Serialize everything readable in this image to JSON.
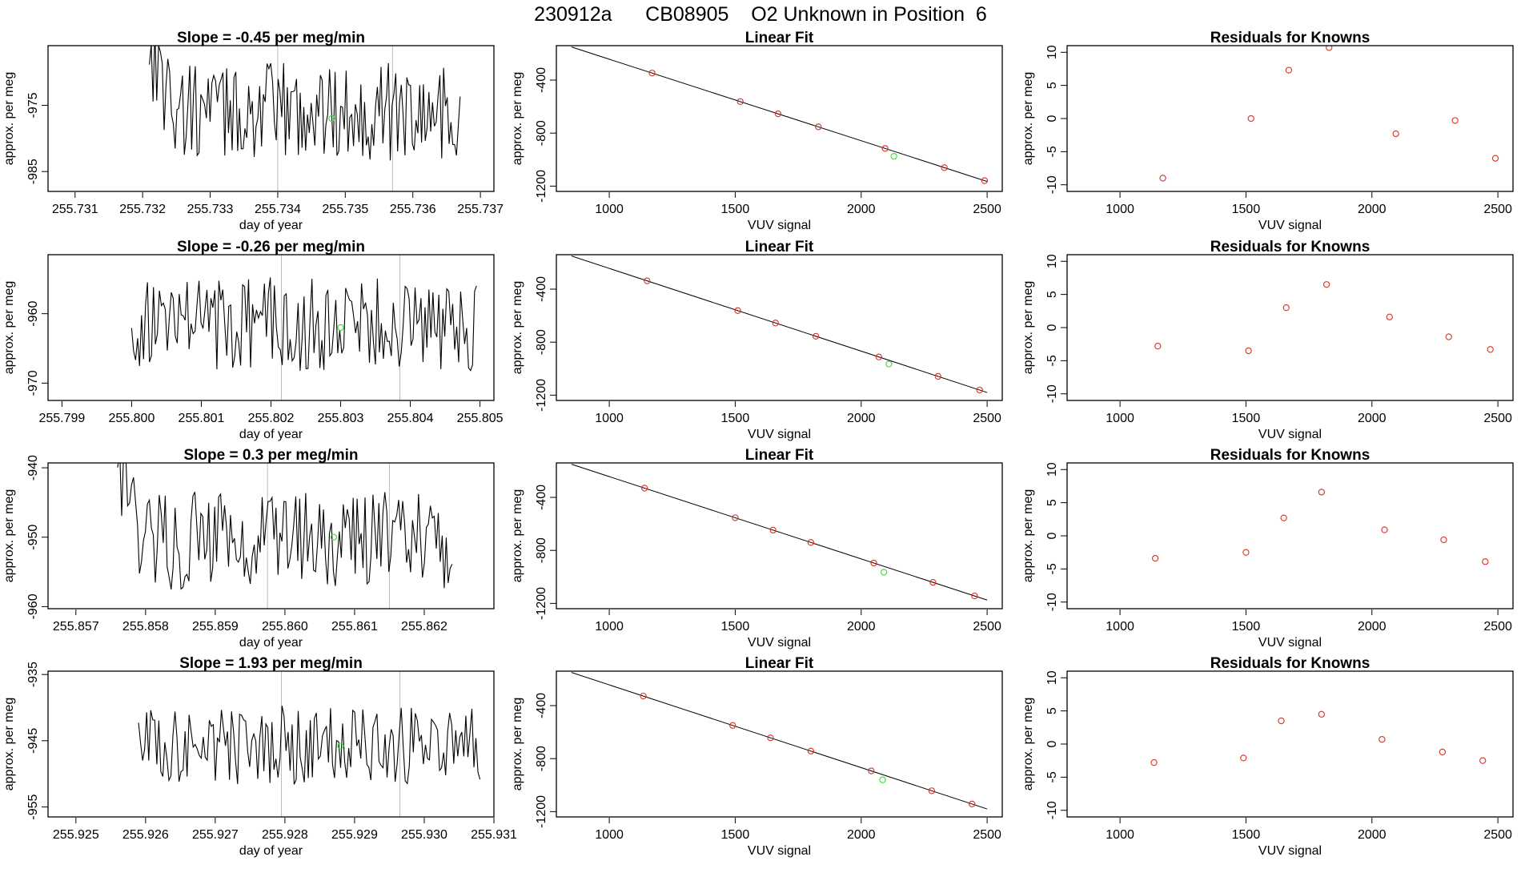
{
  "figure": {
    "suptitle": "230912a      CB08905    O2 Unknown in Position  6"
  },
  "chart_data": [
    {
      "type": "line",
      "row": 1,
      "title": "Slope =  -0.45  per meg/min",
      "xlabel": "day of year",
      "ylabel": "approx. per meg",
      "xlim": [
        255.7306,
        255.7372
      ],
      "ylim": [
        -988,
        -966
      ],
      "xticks": [
        255.731,
        255.732,
        255.733,
        255.734,
        255.735,
        255.736,
        255.737
      ],
      "xtick_labels": [
        "255.731",
        "255.732",
        "255.733",
        "255.734",
        "255.735",
        "255.736",
        "255.737"
      ],
      "yticks": [
        -975,
        -985
      ],
      "ytick_labels": [
        "-975",
        "-985"
      ],
      "vlines": [
        255.734,
        255.7357
      ],
      "series_start": 255.7321,
      "series_end": 255.7367,
      "series_n": 170,
      "series_center": -976,
      "series_amp": 4.6,
      "series_lead": 10,
      "unknown_point": {
        "x": 255.7348,
        "y": -977
      }
    },
    {
      "type": "scatter",
      "row": 1,
      "title": "Linear Fit",
      "xlabel": "VUV signal",
      "ylabel": "approx. per meg",
      "xlim": [
        790,
        2560
      ],
      "ylim": [
        -1240,
        -140
      ],
      "xticks": [
        1000,
        1500,
        2000,
        2500
      ],
      "xtick_labels": [
        "1000",
        "1500",
        "2000",
        "2500"
      ],
      "yticks": [
        -400,
        -800,
        -1200
      ],
      "ytick_labels": [
        "-400",
        "-800",
        "-1200"
      ],
      "fit_line": {
        "x1": 850,
        "y1": -150,
        "x2": 2500,
        "y2": -1165
      },
      "known_x": [
        1170,
        1520,
        1670,
        1830,
        2095,
        2330,
        2490
      ],
      "unknown": {
        "x": 2130,
        "y": -975
      }
    },
    {
      "type": "scatter",
      "row": 1,
      "title": "Residuals for Knowns",
      "xlabel": "VUV signal",
      "ylabel": "approx. per meg",
      "xlim": [
        790,
        2560
      ],
      "ylim": [
        -11,
        11
      ],
      "xticks": [
        1000,
        1500,
        2000,
        2500
      ],
      "xtick_labels": [
        "1000",
        "1500",
        "2000",
        "2500"
      ],
      "yticks": [
        10,
        5,
        0,
        -5,
        -10
      ],
      "ytick_labels": [
        "10",
        "5",
        "0",
        "-5",
        "-10"
      ],
      "x": [
        1170,
        1520,
        1670,
        1830,
        2095,
        2330,
        2490
      ],
      "y": [
        -9,
        0,
        7.3,
        10.7,
        -2.3,
        -0.3,
        -6
      ]
    },
    {
      "type": "line",
      "row": 2,
      "title": "Slope =  -0.26  per meg/min",
      "xlabel": "day of year",
      "ylabel": "approx. per meg",
      "xlim": [
        255.7988,
        255.8052
      ],
      "ylim": [
        -972.5,
        -951.5
      ],
      "xticks": [
        255.799,
        255.8,
        255.801,
        255.802,
        255.803,
        255.804,
        255.805
      ],
      "xtick_labels": [
        "255.799",
        "255.800",
        "255.801",
        "255.802",
        "255.803",
        "255.804",
        "255.805"
      ],
      "yticks": [
        -960,
        -970
      ],
      "ytick_labels": [
        "-960",
        "-970"
      ],
      "vlines": [
        255.80215,
        255.80385
      ],
      "series_start": 255.8,
      "series_end": 255.80495,
      "series_n": 175,
      "series_center": -961.5,
      "series_amp": 4.2,
      "series_lead": 0,
      "unknown_point": {
        "x": 255.803,
        "y": -962
      }
    },
    {
      "type": "scatter",
      "row": 2,
      "title": "Linear Fit",
      "xlabel": "VUV signal",
      "ylabel": "approx. per meg",
      "xlim": [
        790,
        2560
      ],
      "ylim": [
        -1240,
        -140
      ],
      "xticks": [
        1000,
        1500,
        2000,
        2500
      ],
      "xtick_labels": [
        "1000",
        "1500",
        "2000",
        "2500"
      ],
      "yticks": [
        -400,
        -800,
        -1200
      ],
      "ytick_labels": [
        "-400",
        "-800",
        "-1200"
      ],
      "fit_line": {
        "x1": 850,
        "y1": -150,
        "x2": 2500,
        "y2": -1180
      },
      "known_x": [
        1150,
        1510,
        1660,
        1820,
        2070,
        2305,
        2470
      ],
      "unknown": {
        "x": 2110,
        "y": -965
      }
    },
    {
      "type": "scatter",
      "row": 2,
      "title": "Residuals for Knowns",
      "xlabel": "VUV signal",
      "ylabel": "approx. per meg",
      "xlim": [
        790,
        2560
      ],
      "ylim": [
        -11,
        11
      ],
      "xticks": [
        1000,
        1500,
        2000,
        2500
      ],
      "xtick_labels": [
        "1000",
        "1500",
        "2000",
        "2500"
      ],
      "yticks": [
        10,
        5,
        0,
        -5,
        -10
      ],
      "ytick_labels": [
        "10",
        "5",
        "0",
        "-5",
        "-10"
      ],
      "x": [
        1150,
        1510,
        1660,
        1820,
        2070,
        2305,
        2470
      ],
      "y": [
        -2.8,
        -3.5,
        3,
        6.5,
        1.6,
        -1.4,
        -3.3
      ]
    },
    {
      "type": "line",
      "row": 3,
      "title": "Slope =  0.3  per meg/min",
      "xlabel": "day of year",
      "ylabel": "approx. per meg",
      "xlim": [
        255.8566,
        255.863
      ],
      "ylim": [
        -960.3,
        -939.3
      ],
      "xticks": [
        255.857,
        255.858,
        255.859,
        255.86,
        255.861,
        255.862
      ],
      "xtick_labels": [
        "255.857",
        "255.858",
        "255.859",
        "255.860",
        "255.861",
        "255.862"
      ],
      "yticks": [
        -940,
        -950,
        -960
      ],
      "ytick_labels": [
        "-940",
        "-950",
        "-960"
      ],
      "vlines": [
        255.85975,
        255.8615
      ],
      "series_start": 255.8576,
      "series_end": 255.8624,
      "series_n": 170,
      "series_center": -950.5,
      "series_amp": 4.4,
      "series_lead": 9,
      "unknown_point": {
        "x": 255.8607,
        "y": -950
      }
    },
    {
      "type": "scatter",
      "row": 3,
      "title": "Linear Fit",
      "xlabel": "VUV signal",
      "ylabel": "approx. per meg",
      "xlim": [
        790,
        2560
      ],
      "ylim": [
        -1240,
        -140
      ],
      "xticks": [
        1000,
        1500,
        2000,
        2500
      ],
      "xtick_labels": [
        "1000",
        "1500",
        "2000",
        "2500"
      ],
      "yticks": [
        -400,
        -800,
        -1200
      ],
      "ytick_labels": [
        "-400",
        "-800",
        "-1200"
      ],
      "fit_line": {
        "x1": 850,
        "y1": -150,
        "x2": 2500,
        "y2": -1175
      },
      "known_x": [
        1140,
        1500,
        1650,
        1800,
        2050,
        2285,
        2450
      ],
      "unknown": {
        "x": 2090,
        "y": -965
      }
    },
    {
      "type": "scatter",
      "row": 3,
      "title": "Residuals for Knowns",
      "xlabel": "VUV signal",
      "ylabel": "approx. per meg",
      "xlim": [
        790,
        2560
      ],
      "ylim": [
        -11,
        11
      ],
      "xticks": [
        1000,
        1500,
        2000,
        2500
      ],
      "xtick_labels": [
        "1000",
        "1500",
        "2000",
        "2500"
      ],
      "yticks": [
        10,
        5,
        0,
        -5,
        -10
      ],
      "ytick_labels": [
        "10",
        "5",
        "0",
        "-5",
        "-10"
      ],
      "x": [
        1140,
        1500,
        1650,
        1800,
        2050,
        2285,
        2450
      ],
      "y": [
        -3.4,
        -2.5,
        2.7,
        6.6,
        0.9,
        -0.6,
        -3.9
      ]
    },
    {
      "type": "line",
      "row": 4,
      "title": "Slope =  1.93  per meg/min",
      "xlabel": "day of year",
      "ylabel": "approx. per meg",
      "xlim": [
        255.9246,
        255.931
      ],
      "ylim": [
        -956.5,
        -934.5
      ],
      "xticks": [
        255.925,
        255.926,
        255.927,
        255.928,
        255.929,
        255.93,
        255.931
      ],
      "xtick_labels": [
        "255.925",
        "255.926",
        "255.927",
        "255.928",
        "255.929",
        "255.930",
        "255.931"
      ],
      "yticks": [
        -935,
        -945,
        -955
      ],
      "ytick_labels": [
        "-935",
        "-945",
        "-955"
      ],
      "vlines": [
        255.92795,
        255.92965
      ],
      "series_start": 255.9259,
      "series_end": 255.9308,
      "series_n": 170,
      "series_center": -945.5,
      "series_amp": 3.8,
      "series_lead": 0,
      "unknown_point": {
        "x": 255.9288,
        "y": -945.8
      }
    },
    {
      "type": "scatter",
      "row": 4,
      "title": "Linear Fit",
      "xlabel": "VUV signal",
      "ylabel": "approx. per meg",
      "xlim": [
        790,
        2560
      ],
      "ylim": [
        -1240,
        -140
      ],
      "xticks": [
        1000,
        1500,
        2000,
        2500
      ],
      "xtick_labels": [
        "1000",
        "1500",
        "2000",
        "2500"
      ],
      "yticks": [
        -400,
        -800,
        -1200
      ],
      "ytick_labels": [
        "-400",
        "-800",
        "-1200"
      ],
      "fit_line": {
        "x1": 850,
        "y1": -150,
        "x2": 2500,
        "y2": -1180
      },
      "known_x": [
        1135,
        1490,
        1640,
        1800,
        2040,
        2280,
        2440
      ],
      "unknown": {
        "x": 2085,
        "y": -960
      }
    },
    {
      "type": "scatter",
      "row": 4,
      "title": "Residuals for Knowns",
      "xlabel": "VUV signal",
      "ylabel": "approx. per meg",
      "xlim": [
        790,
        2560
      ],
      "ylim": [
        -11,
        11
      ],
      "xticks": [
        1000,
        1500,
        2000,
        2500
      ],
      "xtick_labels": [
        "1000",
        "1500",
        "2000",
        "2500"
      ],
      "yticks": [
        10,
        5,
        0,
        -5,
        -10
      ],
      "ytick_labels": [
        "10",
        "5",
        "0",
        "-5",
        "-10"
      ],
      "x": [
        1135,
        1490,
        1640,
        1800,
        2040,
        2280,
        2440
      ],
      "y": [
        -2.8,
        -2.1,
        3.5,
        4.5,
        0.7,
        -1.2,
        -2.5
      ]
    }
  ],
  "colors": {
    "series": "#000000",
    "known_point": "#d73027",
    "unknown_point": "#33dd33",
    "vline": "#bbbbbb",
    "fit_line": "#000000"
  }
}
